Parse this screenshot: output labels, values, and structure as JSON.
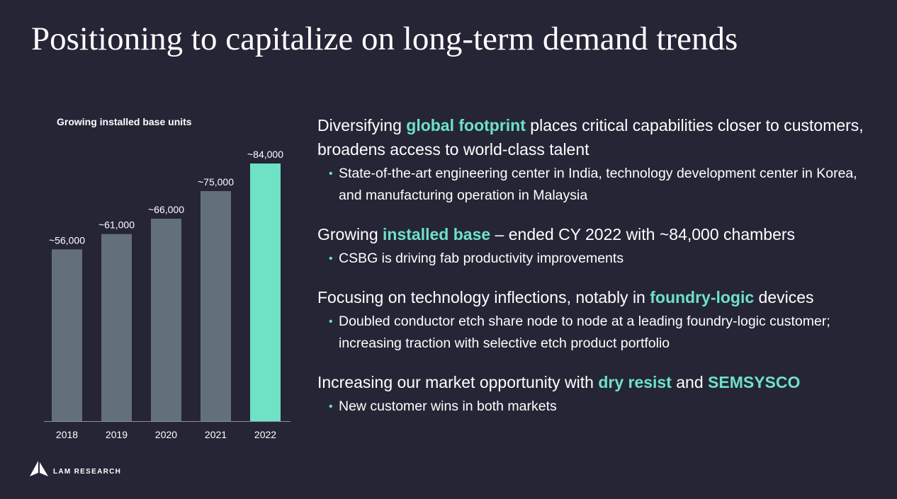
{
  "slide": {
    "title": "Positioning to capitalize on long-term demand trends"
  },
  "chart_data": {
    "type": "bar",
    "title": "Growing installed base units",
    "categories": [
      "2018",
      "2019",
      "2020",
      "2021",
      "2022"
    ],
    "values": [
      56000,
      61000,
      66000,
      75000,
      84000
    ],
    "data_labels": [
      "~56,000",
      "~61,000",
      "~66,000",
      "~75,000",
      "~84,000"
    ],
    "highlight_index": 4,
    "colors": {
      "bar": "#647079",
      "highlight": "#6ee2c5"
    },
    "ylim": [
      0,
      84000
    ],
    "grid": false,
    "xlabel": "",
    "ylabel": ""
  },
  "points": [
    {
      "head_before": "Diversifying ",
      "head_highlight": "global footprint",
      "head_after": " places critical capabilities closer to customers, broadens access to world-class talent",
      "sub": "State-of-the-art engineering center in India, technology development center in Korea, and manufacturing operation in Malaysia"
    },
    {
      "head_before": "Growing ",
      "head_highlight": "installed base",
      "head_after": " – ended CY 2022 with ~84,000 chambers",
      "sub": "CSBG is driving fab productivity improvements"
    },
    {
      "head_before": "Focusing on technology inflections, notably in ",
      "head_highlight": "foundry-logic",
      "head_after": " devices",
      "sub": "Doubled conductor etch share node to node at a leading foundry-logic customer; increasing traction with selective etch product portfolio"
    },
    {
      "head_before": "Increasing our market opportunity with ",
      "head_highlight": "dry resist",
      "head_middle": " and ",
      "head_highlight_2": "SEMSYSCO",
      "sub": "New customer wins in both markets"
    }
  ],
  "bullet_char": "•",
  "accent_color": "#6ee2c5",
  "logo": {
    "text": "LAM RESEARCH",
    "icon": "lam-mountain-logo-icon"
  }
}
